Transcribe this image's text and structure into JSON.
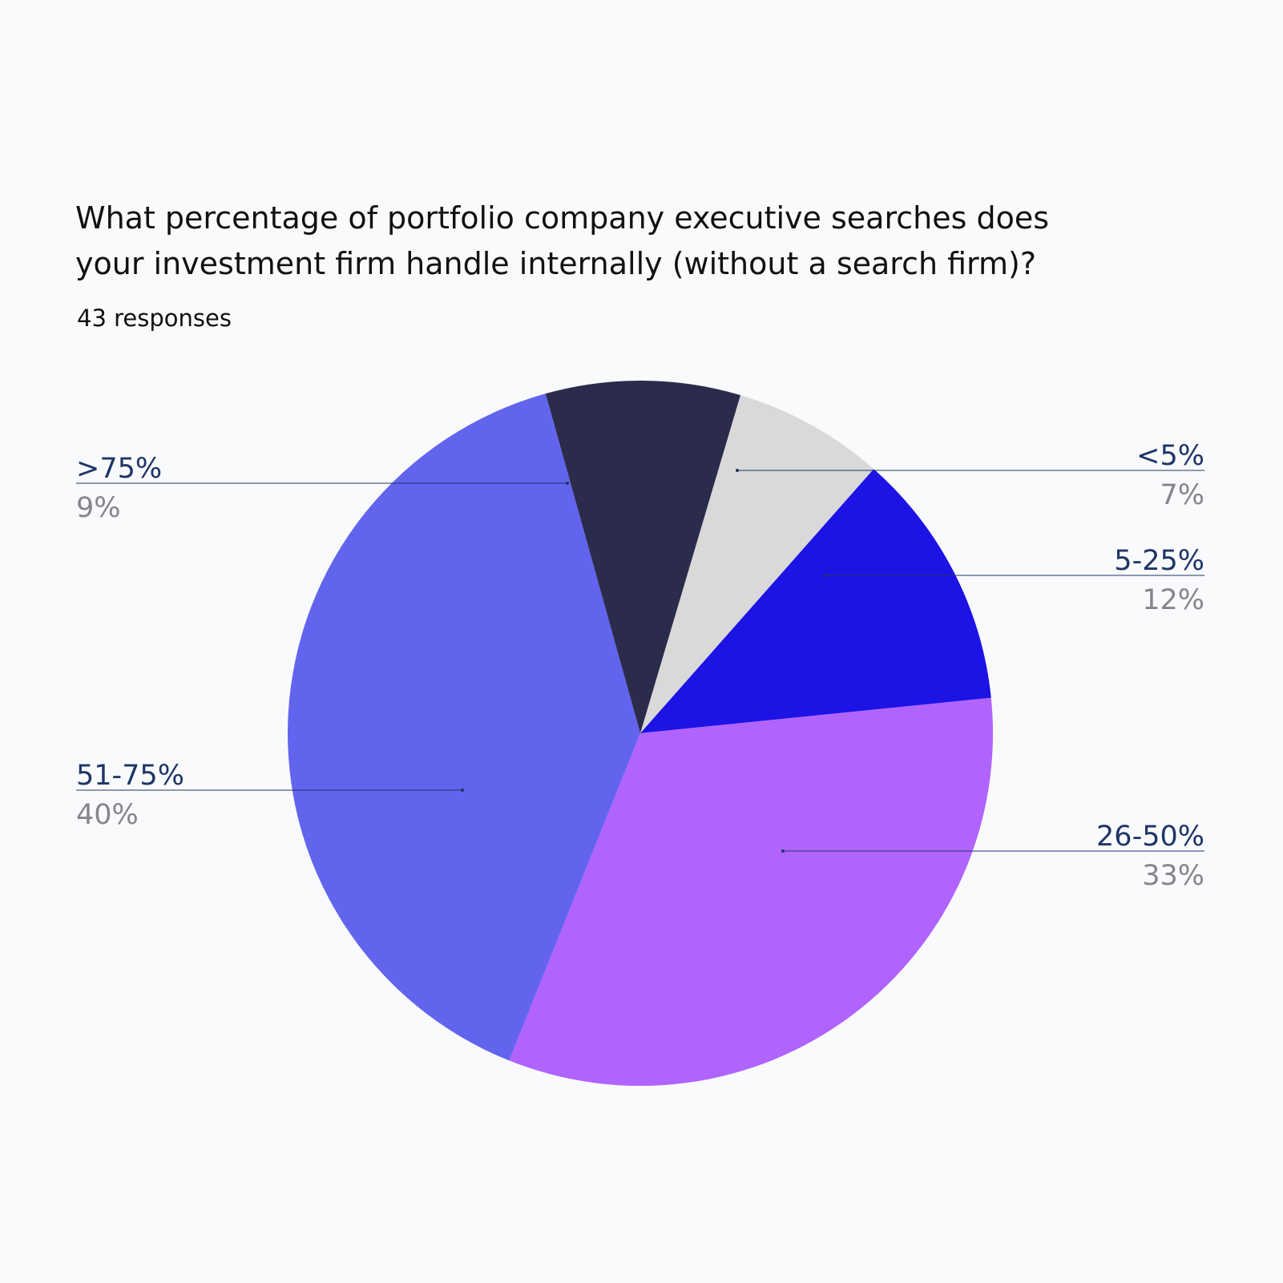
{
  "title_lines": [
    "What percentage of portfolio company executive searches does",
    "your investment firm handle internally (without a search firm)?"
  ],
  "subtitle": "43 responses",
  "chart_data": {
    "type": "pie",
    "title": "What percentage of portfolio company executive searches does your investment firm handle internally (without a search firm)?",
    "subtitle": "43 responses",
    "slices": [
      {
        "label": "<5%",
        "value": 7,
        "display": "7%",
        "color": "#d9d9d9",
        "label_side": "right"
      },
      {
        "label": "5-25%",
        "value": 12,
        "display": "12%",
        "color": "#1d13e5",
        "label_side": "right"
      },
      {
        "label": "26-50%",
        "value": 33,
        "display": "33%",
        "color": "#b063fd",
        "label_side": "right"
      },
      {
        "label": "51-75%",
        "value": 40,
        "display": "40%",
        "color": "#6264ee",
        "label_side": "left"
      },
      {
        "label": ">75%",
        "value": 9,
        "display": "9%",
        "color": "#2b2b4c",
        "label_side": "left"
      }
    ]
  }
}
